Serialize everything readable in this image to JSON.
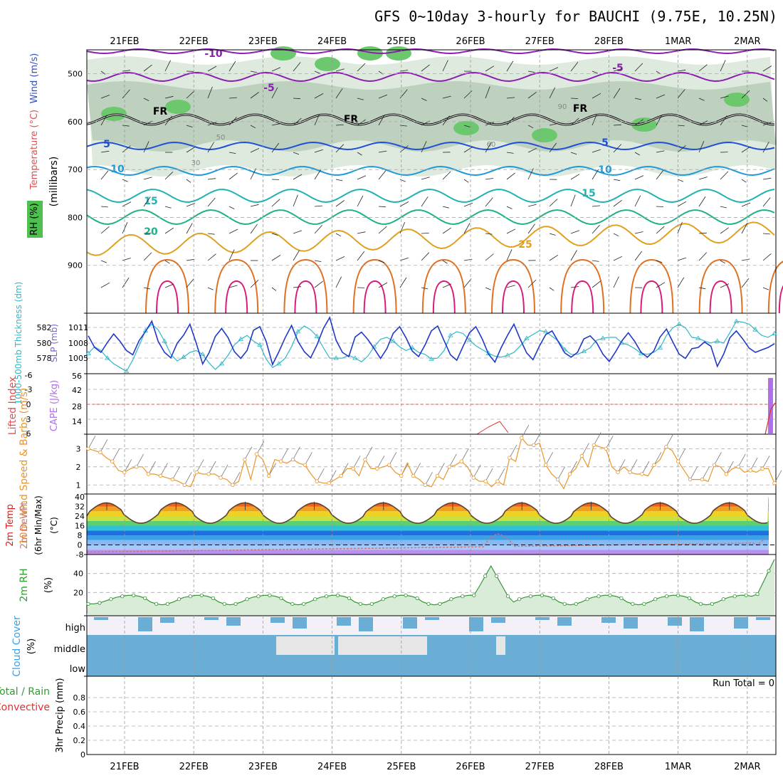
{
  "title": "GFS 0~10day 3-hourly for BAUCHI (9.75E, 10.25N)",
  "dates": [
    "21FEB",
    "22FEB",
    "23FEB",
    "24FEB",
    "25FEB",
    "26FEB",
    "27FEB",
    "28FEB",
    "1MAR",
    "2MAR"
  ],
  "run_total": "Run Total = 0",
  "chart_data": [
    {
      "type": "contour",
      "name": "upper-air",
      "ylabel_parts": [
        "RH (%)",
        "Temperature (°C)",
        "Wind (m/s)"
      ],
      "ylabel_axis": "(millibars)",
      "y_ticks": [
        500,
        600,
        700,
        800,
        900
      ],
      "ylim": [
        1000,
        450
      ],
      "temp_contours": [
        {
          "label": "-10",
          "level": -10,
          "color": "#8b1fb0"
        },
        {
          "label": "-5",
          "level": -5,
          "color": "#8b1fb0"
        },
        {
          "label": "FR",
          "level": 0,
          "color": "#000000"
        },
        {
          "label": "5",
          "level": 5,
          "color": "#1f4fd8"
        },
        {
          "label": "10",
          "level": 10,
          "color": "#1e9ad8"
        },
        {
          "label": "15",
          "level": 15,
          "color": "#20b2b2"
        },
        {
          "label": "20",
          "level": 20,
          "color": "#20b08a"
        },
        {
          "label": "25",
          "level": 25,
          "color": "#e0a020"
        }
      ],
      "rh_labels": [
        "30",
        "50",
        "60",
        "90"
      ]
    },
    {
      "type": "line",
      "name": "thickness-slp",
      "ylabel_left": "1000-500mb Thickness (dm)",
      "ylabel_right": "SLP (mb)",
      "left_ticks": [
        "582",
        "580",
        "578"
      ],
      "right_ticks": [
        "1011",
        "1008",
        "1005"
      ],
      "series": [
        {
          "name": "Thickness",
          "color": "#30b8c8",
          "values": [
            578.7,
            579.4,
            579.0,
            578.2,
            577.6,
            577.2,
            576.8,
            578.0,
            579.5,
            581.1,
            581.8,
            581.2,
            580.0,
            578.6,
            577.9,
            578.3,
            578.8,
            579.0,
            578.6,
            577.7,
            577.0,
            577.6,
            578.5,
            579.6,
            580.2,
            580.6,
            580.0,
            579.6,
            578.1,
            577.2,
            577.6,
            578.2,
            579.4,
            581.0,
            581.6,
            581.2,
            580.5,
            579.3,
            578.2,
            578.2,
            578.2,
            578.5,
            578.2,
            577.8,
            578.4,
            579.4,
            580.2,
            580.4,
            580.0,
            579.4,
            579.0,
            579.3,
            578.8,
            578.6,
            578.1,
            578.2,
            579.0,
            580.6,
            581.0,
            580.8,
            580.1,
            579.5,
            579.1,
            578.7,
            578.4,
            578.3,
            578.5,
            578.8,
            579.5,
            580.3,
            580.7,
            581.1,
            581.0,
            580.5,
            580.0,
            579.1,
            578.6,
            578.6,
            578.9,
            579.3,
            580.1,
            580.3,
            580.4,
            580.4,
            579.8,
            579.6,
            579.2,
            578.7,
            578.6,
            578.8,
            579.3,
            580.6,
            581.4,
            581.8,
            581.4,
            580.4,
            580.3,
            580.0,
            579.8,
            580.0,
            579.8,
            580.9,
            582.1,
            582.0,
            581.8,
            581.2,
            580.6,
            580.4,
            580.8
          ]
        },
        {
          "name": "SLP",
          "color": "#2038c8",
          "values": [
            1009.5,
            1007.6,
            1006.8,
            1008.4,
            1009.8,
            1008.6,
            1007.1,
            1006.4,
            1008.7,
            1010.2,
            1011.9,
            1008.6,
            1006.8,
            1005.9,
            1008.3,
            1009.6,
            1011.4,
            1008.3,
            1004.9,
            1006.7,
            1009.4,
            1010.7,
            1009.2,
            1006.9,
            1005.8,
            1007.1,
            1010.4,
            1011.0,
            1008.6,
            1004.8,
            1006.9,
            1009.2,
            1011.2,
            1008.6,
            1006.9,
            1005.9,
            1008.0,
            1010.7,
            1012.5,
            1008.8,
            1006.8,
            1006.1,
            1009.3,
            1010.1,
            1008.9,
            1007.4,
            1005.8,
            1007.4,
            1009.9,
            1011.0,
            1009.2,
            1007.0,
            1006.1,
            1008.0,
            1010.3,
            1011.1,
            1008.7,
            1006.4,
            1005.5,
            1007.8,
            1010.0,
            1011.0,
            1009.0,
            1006.5,
            1005.2,
            1007.6,
            1009.6,
            1011.4,
            1008.9,
            1006.7,
            1005.6,
            1007.8,
            1009.7,
            1010.3,
            1008.5,
            1006.7,
            1006.0,
            1006.8,
            1009.0,
            1009.5,
            1008.4,
            1006.5,
            1005.3,
            1006.9,
            1008.7,
            1010.0,
            1008.6,
            1006.8,
            1006.0,
            1007.0,
            1009.3,
            1010.6,
            1008.5,
            1006.5,
            1005.8,
            1007.4,
            1007.6,
            1008.5,
            1007.8,
            1004.5,
            1006.5,
            1009.2,
            1010.3,
            1009.0,
            1007.5,
            1006.8,
            1007.2,
            1007.6,
            1008.2
          ]
        }
      ]
    },
    {
      "type": "line",
      "name": "stability",
      "ylabel_left": "Lifted Index",
      "ylabel_right": "CAPE (J/kg)",
      "left_ticks": [
        "-6",
        "-3",
        "0",
        "3",
        "6"
      ],
      "right_ticks": [
        "56",
        "42",
        "28",
        "14"
      ],
      "cape_bar": {
        "day_index": 9.3,
        "value": 56,
        "color": "#b070e8"
      },
      "li_color": "#e03030"
    },
    {
      "type": "line",
      "name": "wind-10m",
      "ylabel": "10m Wind Speed & Barbs (m/s)",
      "y_ticks": [
        "3",
        "2",
        "1"
      ],
      "ylim": [
        0.5,
        3.8
      ],
      "color": "#e8962c",
      "values": [
        3.0,
        2.9,
        2.8,
        2.5,
        2.3,
        1.8,
        1.7,
        1.9,
        2.0,
        2.0,
        1.6,
        1.6,
        1.5,
        1.4,
        1.3,
        1.2,
        1.0,
        0.9,
        1.7,
        1.6,
        1.6,
        1.6,
        1.4,
        1.3,
        1.0,
        1.2,
        2.4,
        1.3,
        2.7,
        2.4,
        1.5,
        2.4,
        2.3,
        2.2,
        2.4,
        2.2,
        2.1,
        1.6,
        1.2,
        1.1,
        1.1,
        1.3,
        1.5,
        1.9,
        1.9,
        1.5,
        2.4,
        1.9,
        1.9,
        2.0,
        2.1,
        1.7,
        1.5,
        2.2,
        1.5,
        1.3,
        1.0,
        0.9,
        1.5,
        1.3,
        2.0,
        2.1,
        2.3,
        2.0,
        1.4,
        1.2,
        1.2,
        0.9,
        1.2,
        1.0,
        2.5,
        2.3,
        3.6,
        3.2,
        3.2,
        3.3,
        2.1,
        1.6,
        1.3,
        0.8,
        1.6,
        1.9,
        2.6,
        2.0,
        3.2,
        3.1,
        3.0,
        2.0,
        1.7,
        2.0,
        1.7,
        1.6,
        1.6,
        1.5,
        2.1,
        2.4,
        3.1,
        2.9,
        2.3,
        1.8,
        1.3,
        1.3,
        1.3,
        1.2,
        2.1,
        2.0,
        1.6,
        1.9,
        2.0,
        1.7,
        1.8,
        1.7,
        1.9,
        1.9,
        1.1
      ]
    },
    {
      "type": "area",
      "name": "temp-2m",
      "ylabel": "2m Temp 2m DewPt (6hr Min/Max) (°C)",
      "y_ticks": [
        "40",
        "32",
        "24",
        "16",
        "8",
        "0",
        "-8"
      ],
      "ylim": [
        -8,
        40
      ],
      "temp_color": "#604030",
      "dew_color": "#c87878",
      "bands": [
        {
          "from": -8,
          "to": -4,
          "color": "#b890f0"
        },
        {
          "from": -4,
          "to": 0,
          "color": "#a8c8f8"
        },
        {
          "from": 0,
          "to": 4,
          "color": "#88b8f0"
        },
        {
          "from": 4,
          "to": 8,
          "color": "#3aa0e8"
        },
        {
          "from": 8,
          "to": 12,
          "color": "#1f6fe0"
        },
        {
          "from": 12,
          "to": 16,
          "color": "#30c0d8"
        },
        {
          "from": 16,
          "to": 20,
          "color": "#5cd070"
        },
        {
          "from": 20,
          "to": 24,
          "color": "#c8e040"
        },
        {
          "from": 24,
          "to": 28,
          "color": "#f0d020"
        },
        {
          "from": 28,
          "to": 32,
          "color": "#f0a020"
        },
        {
          "from": 32,
          "to": 36,
          "color": "#f06020"
        },
        {
          "from": 36,
          "to": 40,
          "color": "#d82010"
        }
      ],
      "daily_max": [
        35,
        36,
        36,
        36,
        36,
        36,
        36,
        36,
        36,
        36
      ],
      "daily_min": [
        21,
        21,
        21,
        21,
        21,
        21,
        21,
        21,
        21,
        21
      ]
    },
    {
      "type": "area",
      "name": "rh-2m",
      "ylabel": "2m RH (%)",
      "y_ticks": [
        "40",
        "20"
      ],
      "ylim": [
        0,
        60
      ],
      "color": "#2f8f2f",
      "fill": "#d8ecd8",
      "values": [
        8,
        8,
        9,
        11,
        13,
        15,
        16,
        17,
        17,
        16,
        14,
        10,
        8,
        7,
        8,
        10,
        13,
        15,
        16,
        17,
        17,
        16,
        14,
        10,
        8,
        7,
        8,
        10,
        13,
        15,
        16,
        17,
        17,
        16,
        14,
        10,
        8,
        7,
        8,
        10,
        13,
        15,
        16,
        17,
        17,
        16,
        14,
        10,
        8,
        7,
        8,
        10,
        13,
        15,
        16,
        17,
        17,
        16,
        14,
        10,
        8,
        7,
        8,
        10,
        13,
        15,
        16,
        17,
        17,
        16,
        14,
        10,
        8,
        7,
        8,
        10,
        13,
        15,
        16,
        17,
        17,
        16,
        14,
        10,
        8,
        7,
        8,
        10,
        13,
        15,
        16,
        17,
        17,
        16,
        14,
        10,
        8,
        7,
        8,
        10,
        13,
        15,
        16,
        17,
        17,
        16,
        14,
        10,
        8,
        7,
        8,
        10,
        13,
        15,
        16,
        17,
        17,
        16,
        14,
        10,
        8,
        7
      ]
    },
    {
      "type": "heatmap",
      "name": "cloud-cover",
      "ylabel": "Cloud Cover (%)",
      "rows": [
        "high",
        "middle",
        "low"
      ],
      "color": "#6aaed6"
    },
    {
      "type": "bar",
      "name": "precip",
      "ylabel": "3hr Precip (mm)",
      "legend_left": [
        "Total / Rain",
        "Convective"
      ],
      "y_ticks": [
        "0.8",
        "0.6",
        "0.4",
        "0.2",
        "0"
      ],
      "ylim": [
        0,
        1
      ],
      "values": []
    }
  ]
}
